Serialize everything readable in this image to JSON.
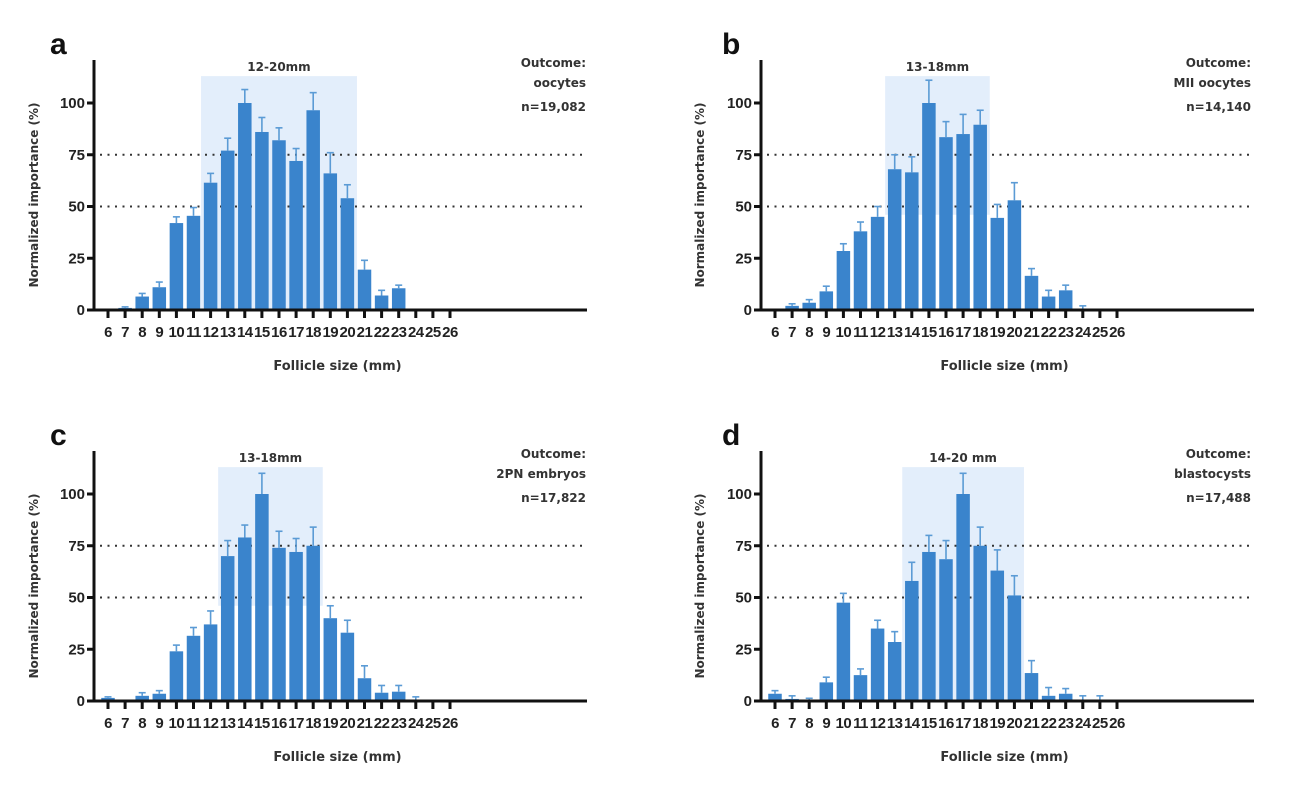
{
  "colors": {
    "bar": "#3a84cc",
    "error_bar": "#5b9bd5",
    "highlight": "#e3eefb",
    "axis": "#111111",
    "reference_line": "#333333"
  },
  "chart_data": [
    {
      "type": "bar",
      "panel": "a",
      "title": "",
      "xlabel": "Follicle size (mm)",
      "ylabel": "Normalized importance (%)",
      "ylim": [
        0,
        118
      ],
      "yticks": [
        0,
        25,
        50,
        75,
        100
      ],
      "reference_lines": [
        50,
        75
      ],
      "categories": [
        "6",
        "7",
        "8",
        "9",
        "10",
        "11",
        "12",
        "13",
        "14",
        "15",
        "16",
        "17",
        "18",
        "19",
        "20",
        "21",
        "22",
        "23",
        "24",
        "25",
        "26"
      ],
      "values": [
        0.5,
        1,
        6.5,
        11,
        42,
        45.5,
        61.5,
        77,
        100,
        86,
        82,
        72,
        96.5,
        66,
        54,
        19.5,
        7,
        10.5,
        0.5,
        0.3,
        0.5
      ],
      "errors": [
        0.2,
        0.5,
        1.5,
        2.5,
        3,
        4,
        4.5,
        6,
        6.5,
        7,
        6,
        6,
        8.5,
        10,
        6.5,
        4.5,
        2.5,
        1.5,
        0.3,
        0.2,
        0.3
      ],
      "highlight": {
        "label": "12-20mm",
        "from": "12",
        "to": "20"
      },
      "annotation": {
        "outcome_label": "Outcome:",
        "outcome": "oocytes",
        "n": "n=19,082"
      }
    },
    {
      "type": "bar",
      "panel": "b",
      "title": "",
      "xlabel": "Follicle size (mm)",
      "ylabel": "Normalized importance (%)",
      "ylim": [
        0,
        118
      ],
      "yticks": [
        0,
        25,
        50,
        75,
        100
      ],
      "reference_lines": [
        50,
        75
      ],
      "categories": [
        "6",
        "7",
        "8",
        "9",
        "10",
        "11",
        "12",
        "13",
        "14",
        "15",
        "16",
        "17",
        "18",
        "19",
        "20",
        "21",
        "22",
        "23",
        "24",
        "25",
        "26"
      ],
      "values": [
        0.3,
        2,
        3.5,
        9,
        28.5,
        38,
        45,
        68,
        66.5,
        100,
        83.5,
        85,
        89.5,
        44.5,
        53,
        16.5,
        6.5,
        9.5,
        0.5,
        0.3,
        0.3
      ],
      "errors": [
        0.2,
        1,
        1.5,
        2.5,
        3.5,
        4.5,
        5,
        7,
        7.5,
        11,
        7.5,
        9.5,
        7,
        6.5,
        8.5,
        3.5,
        3,
        2.5,
        1.5,
        0.2,
        0.2
      ],
      "highlight": {
        "label": "13-18mm",
        "from": "13",
        "to": "18"
      },
      "annotation": {
        "outcome_label": "Outcome:",
        "outcome": "MII oocytes",
        "n": "n=14,140"
      }
    },
    {
      "type": "bar",
      "panel": "c",
      "title": "",
      "xlabel": "Follicle size (mm)",
      "ylabel": "Normalized importance (%)",
      "ylim": [
        0,
        118
      ],
      "yticks": [
        0,
        25,
        50,
        75,
        100
      ],
      "reference_lines": [
        50,
        75
      ],
      "categories": [
        "6",
        "7",
        "8",
        "9",
        "10",
        "11",
        "12",
        "13",
        "14",
        "15",
        "16",
        "17",
        "18",
        "19",
        "20",
        "21",
        "22",
        "23",
        "24",
        "25",
        "26"
      ],
      "values": [
        1.5,
        0.5,
        2.5,
        3.5,
        24,
        31.5,
        37,
        70,
        79,
        100,
        74,
        72,
        75,
        40,
        33,
        11,
        4,
        4.5,
        0.5,
        0.3,
        0.3
      ],
      "errors": [
        0.5,
        0.3,
        1.5,
        1.5,
        3,
        4,
        6.5,
        7.5,
        6,
        10,
        8,
        6.5,
        9,
        6,
        6,
        6,
        3.5,
        3,
        1.5,
        0.2,
        0.2
      ],
      "highlight": {
        "label": "13-18mm",
        "from": "13",
        "to": "18"
      },
      "annotation": {
        "outcome_label": "Outcome:",
        "outcome": "2PN embryos",
        "n": "n=17,822"
      }
    },
    {
      "type": "bar",
      "panel": "d",
      "title": "",
      "xlabel": "Follicle size (mm)",
      "ylabel": "Normalized importance (%)",
      "ylim": [
        0,
        118
      ],
      "yticks": [
        0,
        25,
        50,
        75,
        100
      ],
      "reference_lines": [
        50,
        75
      ],
      "categories": [
        "6",
        "7",
        "8",
        "9",
        "10",
        "11",
        "12",
        "13",
        "14",
        "15",
        "16",
        "17",
        "18",
        "19",
        "20",
        "21",
        "22",
        "23",
        "24",
        "25",
        "26"
      ],
      "values": [
        3.5,
        1,
        0.5,
        9,
        47.5,
        12.5,
        35,
        28.5,
        58,
        72,
        68.5,
        100,
        75,
        63,
        51,
        13.5,
        2.5,
        3.5,
        0.5,
        0.5,
        0.3
      ],
      "errors": [
        1.5,
        1.5,
        0.8,
        2.5,
        4.5,
        3,
        4,
        5,
        9,
        8,
        9,
        10,
        9,
        10,
        9.5,
        6,
        4,
        2.5,
        2,
        2,
        0.3
      ],
      "highlight": {
        "label": "14-20 mm",
        "from": "14",
        "to": "20"
      },
      "annotation": {
        "outcome_label": "Outcome:",
        "outcome": "blastocysts",
        "n": "n=17,488"
      }
    }
  ]
}
